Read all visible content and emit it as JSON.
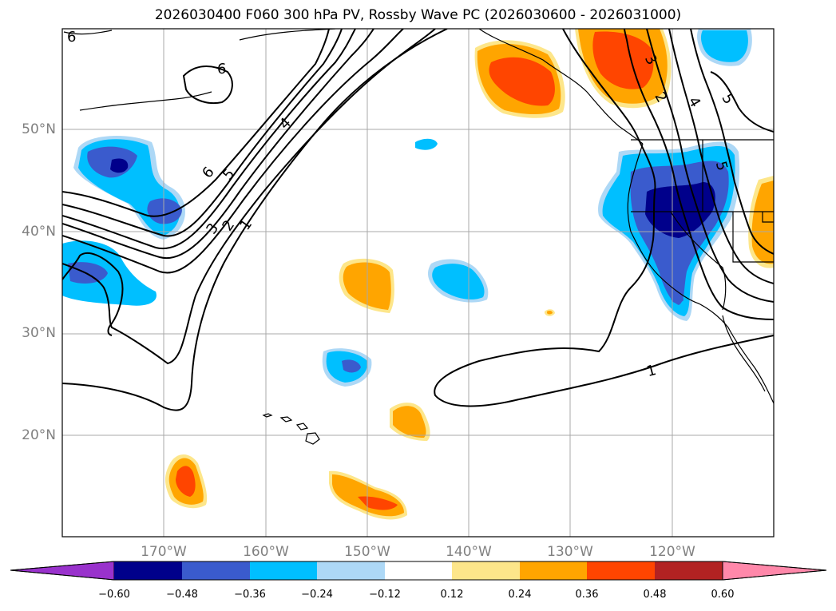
{
  "title": "2026030400 F060 300 hPa PV, Rossby Wave PC (2026030600 - 2026031000)",
  "map": {
    "lat_labels": [
      "50°N",
      "40°N",
      "30°N",
      "20°N"
    ],
    "lon_labels": [
      "170°W",
      "160°W",
      "150°W",
      "140°W",
      "130°W",
      "120°W"
    ],
    "contour_labels": [
      "6",
      "6",
      "6",
      "5",
      "4",
      "3",
      "2",
      "1",
      "1",
      "3",
      "2",
      "4",
      "5",
      "5"
    ],
    "colors": {
      "frame": "#000000",
      "grid": "#a9a9a9",
      "coast": "#000000"
    }
  },
  "colorbar": {
    "ticks": [
      "−0.60",
      "−0.48",
      "−0.36",
      "−0.24",
      "−0.12",
      "0.12",
      "0.24",
      "0.36",
      "0.48",
      "0.60"
    ],
    "colors": [
      "#9932cc",
      "#00008b",
      "#3a5bcd",
      "#00bfff",
      "#add8f6",
      "#ffffff",
      "#fde68a",
      "#ffa500",
      "#ff4500",
      "#b22222",
      "#ff88aa"
    ]
  }
}
